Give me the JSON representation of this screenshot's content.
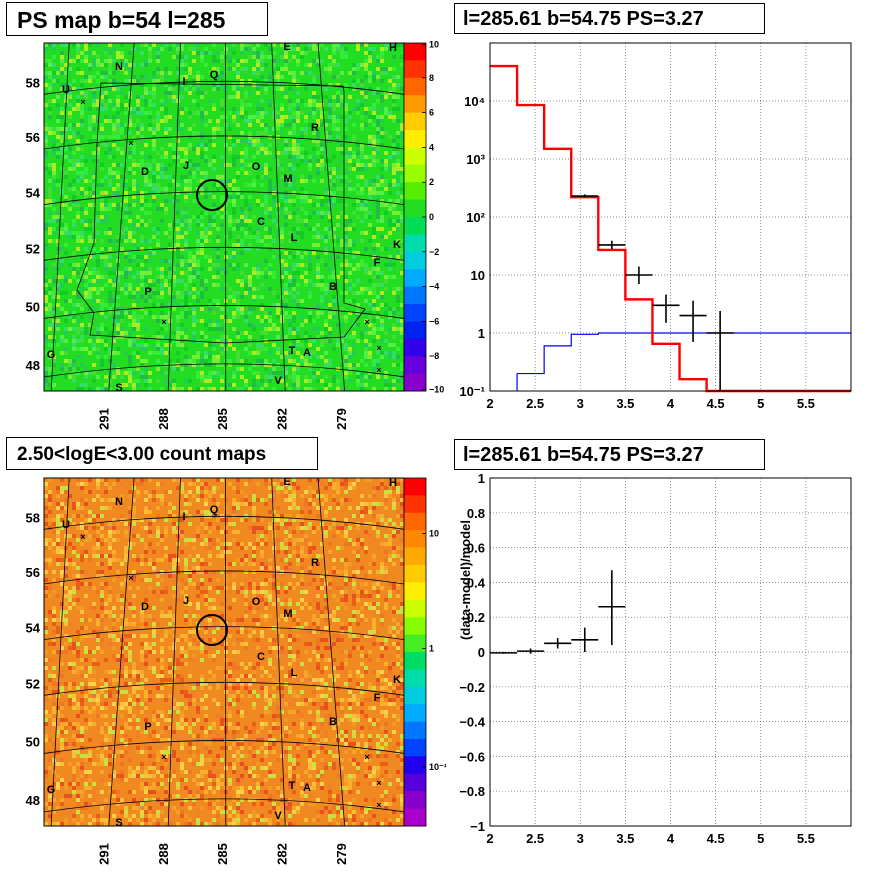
{
  "titles": {
    "tl": "PS map b=54 l=285",
    "tr": "l=285.61 b=54.75 PS=3.27",
    "bl": "2.50<logE<3.00 count maps",
    "br": "l=285.61 b=54.75 PS=3.27"
  },
  "map_axes": {
    "lat_labels": [
      "58",
      "56",
      "54",
      "52",
      "50",
      "48"
    ],
    "lon_labels": [
      "291",
      "288",
      "285",
      "282",
      "279"
    ]
  },
  "map_markers": [
    "N",
    "U",
    "I",
    "Q",
    "E",
    "H",
    "R",
    "D",
    "J",
    "O",
    "M",
    "C",
    "L",
    "K",
    "F",
    "P",
    "B",
    "G",
    "T",
    "A",
    "V",
    "S"
  ],
  "ps_scale": {
    "ticks": [
      "10",
      "8",
      "6",
      "4",
      "2",
      "0",
      "−2",
      "−4",
      "−6",
      "−8",
      "−10"
    ]
  },
  "count_scale": {
    "ticks": [
      "10",
      "1",
      "10⁻¹"
    ]
  },
  "colors": {
    "data": "#000000",
    "model": "#ff0000",
    "source": "#0000ff",
    "ps_map_bg": "#22dd22",
    "count_map_bg": "#f08a20"
  },
  "chart_data": [
    {
      "type": "line",
      "title": "l=285.61 b=54.75 PS=3.27",
      "xlabel": "",
      "ylabel": "",
      "xlim": [
        2,
        6
      ],
      "ylim": [
        0.1,
        100000
      ],
      "yscale": "log",
      "xticks": [
        "2",
        "2.5",
        "3",
        "3.5",
        "4",
        "4.5",
        "5",
        "5.5"
      ],
      "yticks": [
        "10⁻¹",
        "1",
        "10",
        "10²",
        "10³",
        "10⁴"
      ],
      "grid": true,
      "model_step": {
        "edges": [
          2,
          2.3,
          2.6,
          2.9,
          3.2,
          3.5,
          3.8,
          4.1,
          4.4,
          6
        ],
        "values": [
          40000,
          8500,
          1500,
          220,
          27,
          3.8,
          0.65,
          0.16,
          0.1
        ]
      },
      "source_step": {
        "edges": [
          2.3,
          2.6,
          2.9,
          3.2,
          6
        ],
        "values": [
          0.2,
          0.6,
          0.95,
          1.0
        ]
      },
      "data_points": [
        {
          "x": 3.05,
          "xerr": 0.15,
          "y": 230,
          "ylo": 215,
          "yhi": 245
        },
        {
          "x": 3.35,
          "xerr": 0.15,
          "y": 33,
          "ylo": 28,
          "yhi": 39
        },
        {
          "x": 3.65,
          "xerr": 0.15,
          "y": 10,
          "ylo": 7,
          "yhi": 14
        },
        {
          "x": 3.95,
          "xerr": 0.15,
          "y": 3,
          "ylo": 1.5,
          "yhi": 4.6
        },
        {
          "x": 4.25,
          "xerr": 0.15,
          "y": 2,
          "ylo": 0.7,
          "yhi": 3.6
        },
        {
          "x": 4.55,
          "xerr": 0.15,
          "y": 1,
          "ylo": 0.1,
          "yhi": 2.4
        }
      ]
    },
    {
      "type": "scatter",
      "title": "l=285.61 b=54.75 PS=3.27",
      "xlabel": "",
      "ylabel": "(data-model)/model",
      "xlim": [
        2,
        6
      ],
      "ylim": [
        -1,
        1
      ],
      "xticks": [
        "2",
        "2.5",
        "3",
        "3.5",
        "4",
        "4.5",
        "5",
        "5.5"
      ],
      "yticks": [
        "−1",
        "−0.8",
        "−0.6",
        "−0.4",
        "−0.2",
        "0",
        "0.2",
        "0.4",
        "0.6",
        "0.8",
        "1"
      ],
      "grid": true,
      "data_points": [
        {
          "x": 2.15,
          "xerr": 0.15,
          "y": -0.005,
          "ylo": -0.01,
          "yhi": 0.0
        },
        {
          "x": 2.45,
          "xerr": 0.15,
          "y": 0.005,
          "ylo": -0.01,
          "yhi": 0.02
        },
        {
          "x": 2.75,
          "xerr": 0.15,
          "y": 0.05,
          "ylo": 0.02,
          "yhi": 0.08
        },
        {
          "x": 3.05,
          "xerr": 0.15,
          "y": 0.07,
          "ylo": 0.0,
          "yhi": 0.14
        },
        {
          "x": 3.35,
          "xerr": 0.15,
          "y": 0.26,
          "ylo": 0.04,
          "yhi": 0.47
        }
      ]
    }
  ]
}
